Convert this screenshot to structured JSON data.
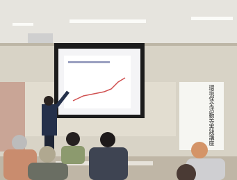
{
  "banner": {
    "title": "環境保全活動等実践講座"
  }
}
